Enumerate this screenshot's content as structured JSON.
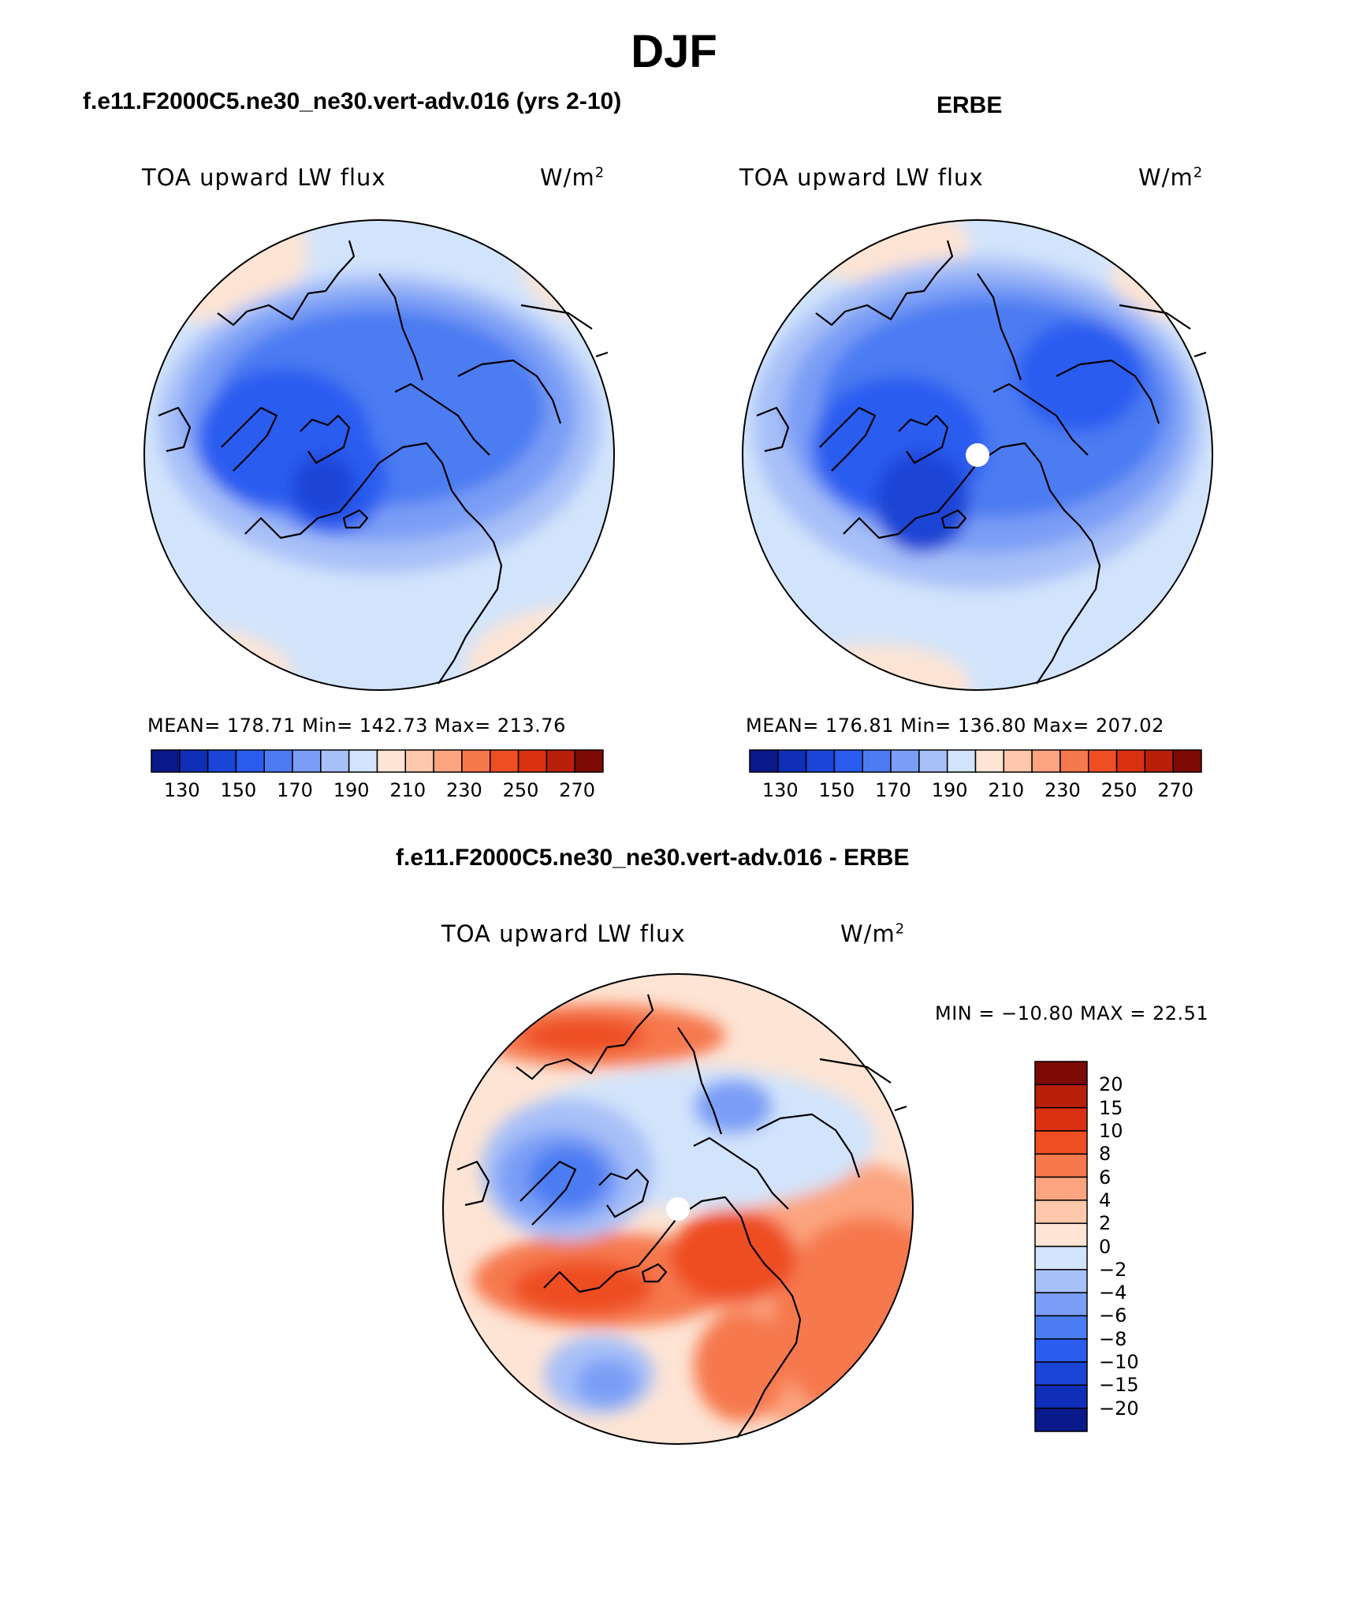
{
  "figure": {
    "season": "DJF",
    "model_title": "f.e11.F2000C5.ne30_ne30.vert-adv.016 (yrs 2-10)",
    "obs_title": "ERBE",
    "diff_title": "f.e11.F2000C5.ne30_ne30.vert-adv.016 - ERBE"
  },
  "panels": {
    "model": {
      "variable": "TOA upward LW flux",
      "units": "W/m",
      "units_sup": "2",
      "stats_text": "MEAN= 178.71   Min= 142.73   Max= 213.76",
      "mean": 178.71,
      "min": 142.73,
      "max": 213.76
    },
    "obs": {
      "variable": "TOA upward LW flux",
      "units": "W/m",
      "units_sup": "2",
      "stats_text": "MEAN= 176.81   Min= 136.80   Max= 207.02",
      "mean": 176.81,
      "min": 136.8,
      "max": 207.02
    },
    "diff": {
      "variable": "TOA upward LW flux",
      "units": "W/m",
      "units_sup": "2",
      "stats_text": "MIN = −10.80 MAX =  22.51",
      "min": -10.8,
      "max": 22.51
    }
  },
  "colorbars": {
    "abs": {
      "colors": [
        "#0a1a8a",
        "#0f2fb8",
        "#1a45d6",
        "#2a5cf0",
        "#4c7cf2",
        "#7a9ef5",
        "#a7c0f8",
        "#d2e4fb",
        "#fde4d4",
        "#fcc7ab",
        "#fba47f",
        "#f6784d",
        "#ee4e22",
        "#d9310f",
        "#b8200a",
        "#7d0a05"
      ],
      "tick_labels": [
        "130",
        "150",
        "170",
        "190",
        "210",
        "230",
        "250",
        "270"
      ]
    },
    "diff": {
      "colors": [
        "#7d0a05",
        "#b8200a",
        "#d9310f",
        "#ee4e22",
        "#f6784d",
        "#fba47f",
        "#fcc7ab",
        "#fde4d4",
        "#d2e4fb",
        "#a7c0f8",
        "#7a9ef5",
        "#4c7cf2",
        "#2a5cf0",
        "#1a45d6",
        "#0f2fb8",
        "#0a1a8a"
      ],
      "tick_labels": [
        "20",
        "15",
        "10",
        "8",
        "6",
        "4",
        "2",
        "0",
        "−2",
        "−4",
        "−6",
        "−8",
        "−10",
        "−15",
        "−20"
      ]
    }
  }
}
